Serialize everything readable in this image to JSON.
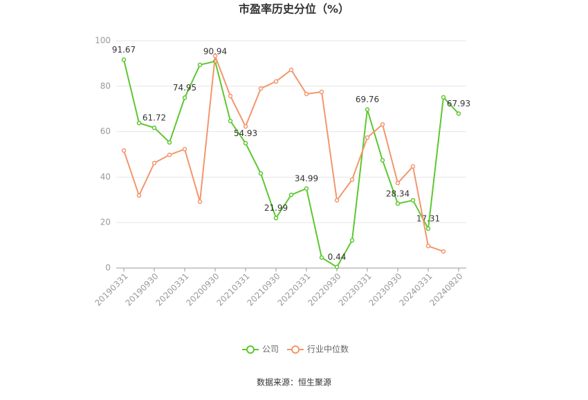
{
  "chart_data": {
    "type": "line",
    "title": "市盈率历史分位（%）",
    "categories": [
      "20190331",
      null,
      "20190930",
      null,
      "20200331",
      null,
      "20200930",
      null,
      "20210331",
      null,
      "20210930",
      null,
      "20220331",
      null,
      "20220930",
      null,
      "20230331",
      null,
      "20230930",
      null,
      "20240331",
      null,
      "20240820"
    ],
    "series": [
      {
        "name": "公司",
        "color": "#5cc72e",
        "values": [
          91.67,
          63.8,
          61.72,
          55.3,
          74.95,
          89.4,
          90.94,
          64.7,
          54.93,
          41.6,
          21.99,
          32.2,
          34.99,
          4.6,
          0.44,
          12.2,
          69.76,
          47.4,
          28.34,
          29.8,
          17.31,
          75.1,
          67.93
        ],
        "data_labels": [
          0,
          2,
          4,
          6,
          8,
          10,
          12,
          14,
          16,
          18,
          20,
          22
        ]
      },
      {
        "name": "行业中位数",
        "color": "#f4956b",
        "values": [
          51.7,
          31.9,
          46.2,
          49.8,
          52.3,
          29.2,
          93.3,
          75.7,
          62.3,
          79.0,
          82.1,
          87.2,
          76.6,
          77.5,
          29.8,
          38.9,
          57.4,
          63.2,
          37.4,
          44.7,
          9.7,
          7.3,
          null
        ]
      }
    ],
    "ylim": [
      0,
      100
    ],
    "yticks": [
      0,
      20,
      40,
      60,
      80,
      100
    ],
    "grid": true,
    "source": "数据来源：恒生聚源"
  }
}
